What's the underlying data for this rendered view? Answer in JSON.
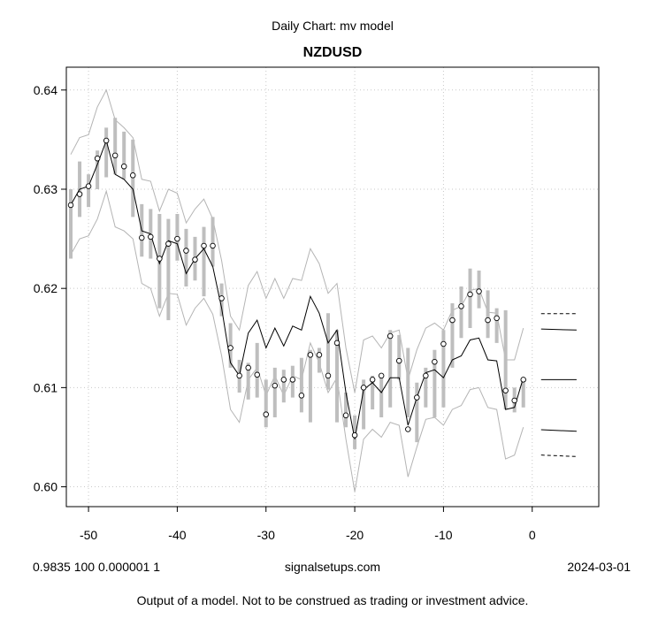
{
  "chart_data": {
    "type": "line",
    "suptitle": "Daily Chart: mv model",
    "title": "NZDUSD",
    "xlabel": "",
    "ylabel": "",
    "xlim": [
      -52.5,
      7.5
    ],
    "ylim": [
      0.598,
      0.6423
    ],
    "xticks": [
      -50,
      -40,
      -30,
      -20,
      -10,
      0
    ],
    "xtick_labels": [
      "-50",
      "-40",
      "-30",
      "-20",
      "-10",
      "0"
    ],
    "yticks": [
      0.6,
      0.61,
      0.62,
      0.63,
      0.64
    ],
    "ytick_labels": [
      "0.60",
      "0.61",
      "0.62",
      "0.63",
      "0.64"
    ],
    "grid": true,
    "colors": {
      "price": "#000000",
      "bands": "#b4b4b4",
      "bars": "#bebebe",
      "grid": "#c8c8c8"
    },
    "x": [
      -52,
      -51,
      -50,
      -49,
      -48,
      -47,
      -46,
      -45,
      -44,
      -43,
      -42,
      -41,
      -40,
      -39,
      -38,
      -37,
      -36,
      -35,
      -34,
      -33,
      -32,
      -31,
      -30,
      -29,
      -28,
      -27,
      -26,
      -25,
      -24,
      -23,
      -22,
      -21,
      -20,
      -19,
      -18,
      -17,
      -16,
      -15,
      -14,
      -13,
      -12,
      -11,
      -10,
      -9,
      -8,
      -7,
      -6,
      -5,
      -4,
      -3,
      -2,
      -1
    ],
    "series": [
      {
        "role": "range-bars",
        "high": [
          0.63,
          0.6328,
          0.6315,
          0.6339,
          0.6362,
          0.6372,
          0.6358,
          0.635,
          0.6285,
          0.628,
          0.6275,
          0.627,
          0.6275,
          0.626,
          0.6252,
          0.6262,
          0.6272,
          0.6205,
          0.6165,
          0.6128,
          0.6125,
          0.6145,
          0.6108,
          0.612,
          0.6118,
          0.6122,
          0.613,
          0.6138,
          0.614,
          0.6175,
          0.6158,
          0.6095,
          0.6072,
          0.6108,
          0.6112,
          0.611,
          0.6158,
          0.6153,
          0.614,
          0.6105,
          0.612,
          0.6138,
          0.6158,
          0.6185,
          0.6202,
          0.622,
          0.6218,
          0.6198,
          0.618,
          0.6178,
          0.61,
          0.6105
        ],
        "low": [
          0.623,
          0.6272,
          0.6282,
          0.63,
          0.6312,
          0.6315,
          0.631,
          0.6272,
          0.6232,
          0.623,
          0.618,
          0.6168,
          0.6228,
          0.6202,
          0.6208,
          0.6192,
          0.6222,
          0.6172,
          0.612,
          0.6095,
          0.6088,
          0.609,
          0.606,
          0.607,
          0.6085,
          0.609,
          0.6075,
          0.6065,
          0.6115,
          0.6098,
          0.6065,
          0.606,
          0.6038,
          0.6058,
          0.6078,
          0.607,
          0.608,
          0.6108,
          0.607,
          0.6045,
          0.608,
          0.607,
          0.608,
          0.612,
          0.615,
          0.616,
          0.618,
          0.615,
          0.6145,
          0.6078,
          0.6075,
          0.608
        ]
      },
      {
        "role": "close-points",
        "values": [
          0.6284,
          0.6295,
          0.6303,
          0.6331,
          0.6349,
          0.6334,
          0.6323,
          0.6314,
          0.6251,
          0.6252,
          0.623,
          0.6245,
          0.625,
          0.6238,
          0.6229,
          0.6243,
          0.6243,
          0.619,
          0.614,
          0.6112,
          0.612,
          0.6113,
          0.6073,
          0.6102,
          0.6108,
          0.6108,
          0.6092,
          0.6133,
          0.6133,
          0.6112,
          0.6145,
          0.6072,
          0.6052,
          0.61,
          0.6108,
          0.6112,
          0.6152,
          0.6127,
          0.6058,
          0.609,
          0.6112,
          0.6126,
          0.6144,
          0.6168,
          0.6182,
          0.6194,
          0.6197,
          0.6168,
          0.617,
          0.6097,
          0.6087,
          0.6108
        ]
      },
      {
        "role": "model-line",
        "values": [
          0.6284,
          0.63,
          0.6303,
          0.6325,
          0.6349,
          0.6315,
          0.631,
          0.63,
          0.6258,
          0.6255,
          0.6225,
          0.6248,
          0.6245,
          0.6215,
          0.623,
          0.624,
          0.6222,
          0.618,
          0.6125,
          0.6112,
          0.6155,
          0.6168,
          0.614,
          0.616,
          0.6142,
          0.6162,
          0.6158,
          0.6192,
          0.6175,
          0.6145,
          0.6158,
          0.6095,
          0.6048,
          0.6098,
          0.6105,
          0.6095,
          0.611,
          0.611,
          0.6062,
          0.609,
          0.6115,
          0.6118,
          0.611,
          0.6128,
          0.6132,
          0.6148,
          0.615,
          0.6128,
          0.6127,
          0.6078,
          0.608,
          0.611
        ]
      },
      {
        "role": "upper-band",
        "values": [
          0.6335,
          0.6352,
          0.6355,
          0.6383,
          0.64,
          0.637,
          0.6362,
          0.6352,
          0.631,
          0.6308,
          0.6278,
          0.63,
          0.6296,
          0.6266,
          0.628,
          0.629,
          0.627,
          0.6228,
          0.6172,
          0.6158,
          0.6203,
          0.6217,
          0.619,
          0.621,
          0.619,
          0.621,
          0.6208,
          0.624,
          0.6225,
          0.6195,
          0.6205,
          0.614,
          0.6095,
          0.6148,
          0.6152,
          0.614,
          0.6155,
          0.6158,
          0.6108,
          0.6138,
          0.616,
          0.6165,
          0.6158,
          0.6178,
          0.6182,
          0.6198,
          0.62,
          0.6176,
          0.6175,
          0.6128,
          0.6128,
          0.616
        ]
      },
      {
        "role": "lower-band",
        "values": [
          0.6234,
          0.625,
          0.6253,
          0.627,
          0.6298,
          0.6262,
          0.6258,
          0.625,
          0.6205,
          0.62,
          0.6172,
          0.6195,
          0.6194,
          0.6163,
          0.618,
          0.619,
          0.6174,
          0.6132,
          0.6078,
          0.6065,
          0.6108,
          0.612,
          0.6092,
          0.6112,
          0.6092,
          0.6112,
          0.6108,
          0.6145,
          0.6125,
          0.6095,
          0.611,
          0.6048,
          0.5995,
          0.6048,
          0.6058,
          0.605,
          0.6065,
          0.6062,
          0.601,
          0.604,
          0.6068,
          0.607,
          0.6062,
          0.6078,
          0.6082,
          0.6098,
          0.61,
          0.608,
          0.6078,
          0.6028,
          0.6032,
          0.606
        ]
      }
    ],
    "forecast_levels": [
      {
        "x": [
          1,
          5
        ],
        "y": [
          0.61745,
          0.61745
        ],
        "style": "dashed"
      },
      {
        "x": [
          1,
          5
        ],
        "y": [
          0.6159,
          0.6158
        ],
        "style": "solid"
      },
      {
        "x": [
          1,
          5
        ],
        "y": [
          0.6108,
          0.6108
        ],
        "style": "solid"
      },
      {
        "x": [
          1,
          5
        ],
        "y": [
          0.60575,
          0.6056
        ],
        "style": "solid"
      },
      {
        "x": [
          1,
          5
        ],
        "y": [
          0.6032,
          0.60305
        ],
        "style": "dashed"
      }
    ],
    "footer": {
      "left": "0.9835 100 0.000001 1",
      "center": "signalsetups.com",
      "right": "2024-03-01",
      "disclaimer": "Output of a model.  Not to be construed as trading or investment advice."
    }
  }
}
